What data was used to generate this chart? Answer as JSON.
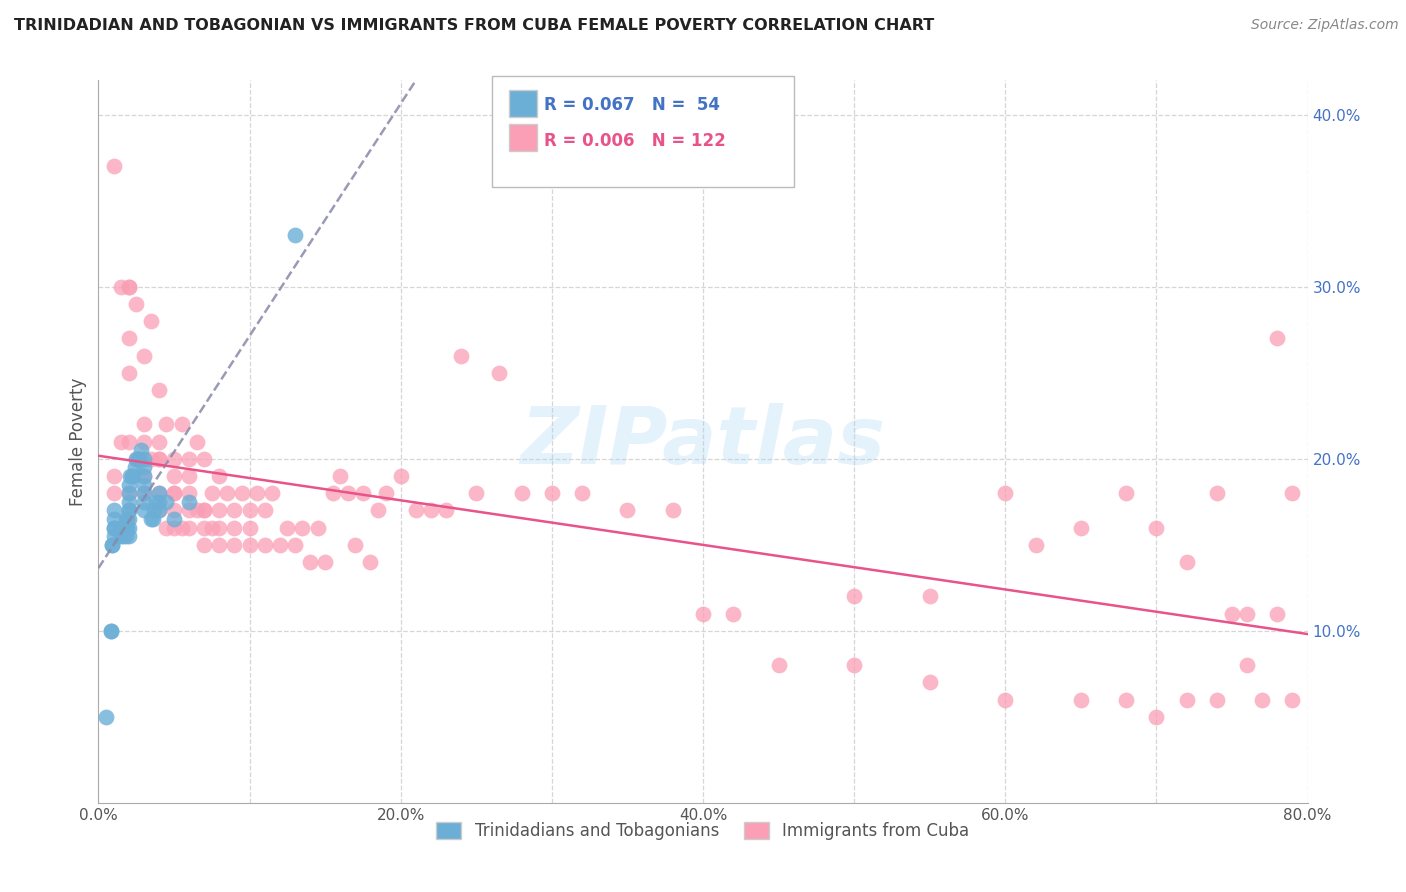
{
  "title": "TRINIDADIAN AND TOBAGONIAN VS IMMIGRANTS FROM CUBA FEMALE POVERTY CORRELATION CHART",
  "source": "Source: ZipAtlas.com",
  "ylabel": "Female Poverty",
  "xlim": [
    0.0,
    0.8
  ],
  "ylim": [
    0.0,
    0.42
  ],
  "color_blue": "#6baed6",
  "color_pink": "#fa9fb5",
  "color_blue_line": "#2166ac",
  "color_pink_line": "#e8538a",
  "color_blue_trend": "#8080c0",
  "color_grid": "#cccccc",
  "watermark": "ZIPatlas",
  "legend_label1": "Trinidadians and Tobagonians",
  "legend_label2": "Immigrants from Cuba",
  "blue_scatter_x": [
    0.005,
    0.008,
    0.008,
    0.009,
    0.009,
    0.01,
    0.01,
    0.01,
    0.01,
    0.01,
    0.015,
    0.015,
    0.016,
    0.016,
    0.017,
    0.018,
    0.018,
    0.018,
    0.019,
    0.019,
    0.02,
    0.02,
    0.02,
    0.02,
    0.02,
    0.02,
    0.02,
    0.02,
    0.021,
    0.022,
    0.023,
    0.024,
    0.025,
    0.026,
    0.027,
    0.028,
    0.03,
    0.03,
    0.03,
    0.03,
    0.03,
    0.03,
    0.03,
    0.035,
    0.036,
    0.037,
    0.038,
    0.04,
    0.04,
    0.04,
    0.045,
    0.05,
    0.06,
    0.13
  ],
  "blue_scatter_y": [
    0.05,
    0.1,
    0.1,
    0.15,
    0.15,
    0.155,
    0.16,
    0.16,
    0.165,
    0.17,
    0.155,
    0.16,
    0.155,
    0.16,
    0.16,
    0.155,
    0.16,
    0.165,
    0.16,
    0.165,
    0.155,
    0.16,
    0.165,
    0.17,
    0.17,
    0.175,
    0.18,
    0.185,
    0.19,
    0.19,
    0.19,
    0.195,
    0.2,
    0.2,
    0.2,
    0.205,
    0.17,
    0.175,
    0.18,
    0.185,
    0.19,
    0.195,
    0.2,
    0.165,
    0.165,
    0.17,
    0.175,
    0.17,
    0.175,
    0.18,
    0.175,
    0.165,
    0.175,
    0.33
  ],
  "pink_scatter_x": [
    0.01,
    0.01,
    0.015,
    0.015,
    0.02,
    0.02,
    0.02,
    0.02,
    0.02,
    0.02,
    0.025,
    0.025,
    0.03,
    0.03,
    0.03,
    0.03,
    0.03,
    0.03,
    0.035,
    0.035,
    0.04,
    0.04,
    0.04,
    0.04,
    0.04,
    0.04,
    0.045,
    0.045,
    0.05,
    0.05,
    0.05,
    0.05,
    0.05,
    0.05,
    0.055,
    0.055,
    0.06,
    0.06,
    0.06,
    0.06,
    0.06,
    0.065,
    0.065,
    0.07,
    0.07,
    0.07,
    0.07,
    0.07,
    0.075,
    0.075,
    0.08,
    0.08,
    0.08,
    0.08,
    0.085,
    0.09,
    0.09,
    0.09,
    0.095,
    0.1,
    0.1,
    0.1,
    0.105,
    0.11,
    0.11,
    0.115,
    0.12,
    0.125,
    0.13,
    0.135,
    0.14,
    0.145,
    0.15,
    0.155,
    0.16,
    0.165,
    0.17,
    0.175,
    0.18,
    0.185,
    0.19,
    0.2,
    0.21,
    0.22,
    0.23,
    0.24,
    0.25,
    0.265,
    0.28,
    0.3,
    0.32,
    0.35,
    0.38,
    0.4,
    0.42,
    0.45,
    0.5,
    0.55,
    0.6,
    0.62,
    0.65,
    0.68,
    0.7,
    0.72,
    0.74,
    0.75,
    0.76,
    0.77,
    0.78,
    0.79,
    0.5,
    0.55,
    0.6,
    0.65,
    0.68,
    0.7,
    0.72,
    0.74,
    0.76,
    0.78,
    0.01,
    0.79
  ],
  "pink_scatter_y": [
    0.19,
    0.37,
    0.21,
    0.3,
    0.18,
    0.21,
    0.25,
    0.27,
    0.3,
    0.3,
    0.2,
    0.29,
    0.18,
    0.19,
    0.2,
    0.21,
    0.22,
    0.26,
    0.2,
    0.28,
    0.17,
    0.18,
    0.2,
    0.2,
    0.21,
    0.24,
    0.16,
    0.22,
    0.16,
    0.17,
    0.18,
    0.18,
    0.19,
    0.2,
    0.16,
    0.22,
    0.16,
    0.17,
    0.18,
    0.19,
    0.2,
    0.17,
    0.21,
    0.15,
    0.16,
    0.17,
    0.17,
    0.2,
    0.16,
    0.18,
    0.15,
    0.16,
    0.17,
    0.19,
    0.18,
    0.15,
    0.16,
    0.17,
    0.18,
    0.15,
    0.16,
    0.17,
    0.18,
    0.15,
    0.17,
    0.18,
    0.15,
    0.16,
    0.15,
    0.16,
    0.14,
    0.16,
    0.14,
    0.18,
    0.19,
    0.18,
    0.15,
    0.18,
    0.14,
    0.17,
    0.18,
    0.19,
    0.17,
    0.17,
    0.17,
    0.26,
    0.18,
    0.25,
    0.18,
    0.18,
    0.18,
    0.17,
    0.17,
    0.11,
    0.11,
    0.08,
    0.12,
    0.12,
    0.18,
    0.15,
    0.16,
    0.18,
    0.16,
    0.14,
    0.18,
    0.11,
    0.11,
    0.06,
    0.11,
    0.06,
    0.08,
    0.07,
    0.06,
    0.06,
    0.06,
    0.05,
    0.06,
    0.06,
    0.08,
    0.27,
    0.18,
    0.18
  ]
}
